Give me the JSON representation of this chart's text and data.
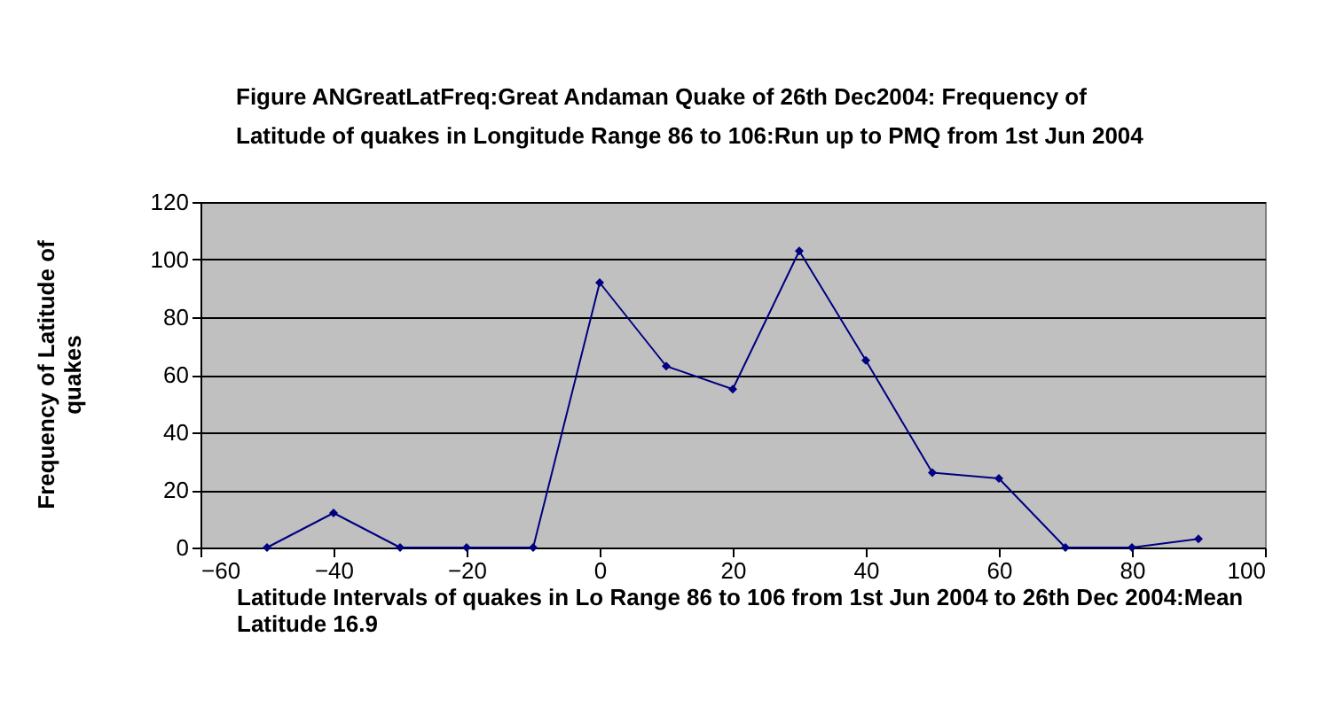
{
  "chart_data": {
    "type": "line",
    "title": "Figure ANGreatLatFreq:Great Andaman Quake of 26th Dec2004: Frequency of Latitude of quakes in Longitude Range 86 to 106:Run up to PMQ from 1st Jun 2004",
    "xlabel": "Latitude Intervals of quakes in Lo Range 86 to 106 from 1st Jun 2004 to 26th Dec 2004:Mean Latitude 16.9",
    "ylabel": "Frequency of Latitude of quakes",
    "x": [
      -50,
      -40,
      -30,
      -20,
      -10,
      0,
      10,
      20,
      30,
      40,
      50,
      60,
      70,
      80,
      90
    ],
    "series": [
      {
        "color": "#000080",
        "values": [
          0,
          12,
          0,
          0,
          0,
          92,
          63,
          55,
          103,
          65,
          26,
          24,
          0,
          0,
          3
        ]
      }
    ],
    "xlim": [
      -60,
      100
    ],
    "xticks": [
      -60,
      -40,
      -20,
      0,
      20,
      40,
      60,
      80,
      100
    ],
    "ylim": [
      0,
      120
    ],
    "yticks": [
      0,
      20,
      40,
      60,
      80,
      100,
      120
    ],
    "grid": "y",
    "marker": "diamond",
    "line_style": "solid"
  }
}
